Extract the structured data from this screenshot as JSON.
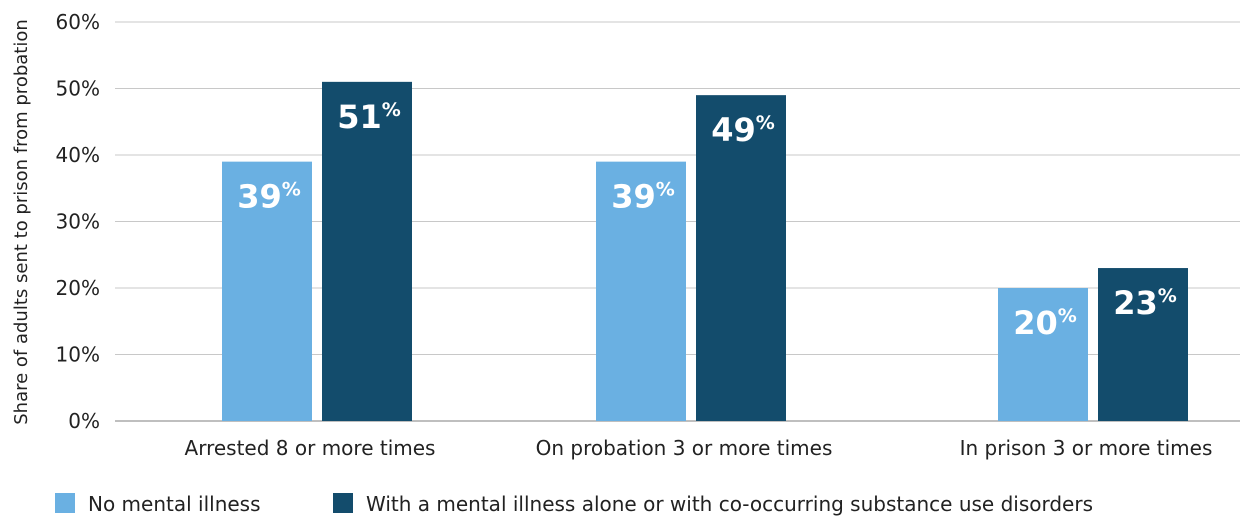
{
  "chart_data": {
    "type": "bar",
    "ylabel": "Share of adults sent to prison from probation",
    "ylim": [
      0,
      60
    ],
    "ytick_step": 10,
    "tick_suffix": "%",
    "grid": true,
    "categories": [
      "Arrested 8 or more times",
      "On probation 3 or more times",
      "In prison 3 or more times"
    ],
    "series": [
      {
        "name": "No mental illness",
        "color": "#6ab0e2",
        "values": [
          39,
          39,
          20
        ],
        "labels": [
          "39",
          "39",
          "20"
        ]
      },
      {
        "name": "With a mental illness alone or with co-occurring substance use disorders",
        "color": "#134c6c",
        "values": [
          51,
          49,
          23
        ],
        "labels": [
          "51",
          "49",
          "23"
        ]
      }
    ],
    "data_label_suffix": "%",
    "legend": "bottom"
  }
}
